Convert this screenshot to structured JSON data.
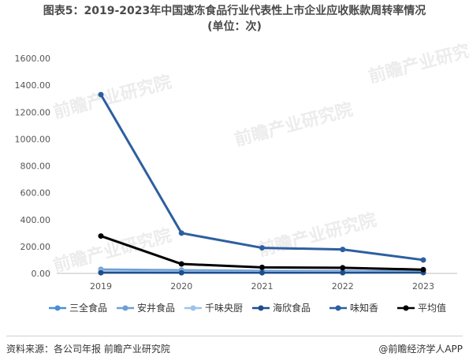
{
  "title_line1": "图表5：2019-2023年中国速冻食品行业代表性上市企业应收账款周转率情况",
  "title_line2": "(单位：次)",
  "source": "资料来源：各公司年报 前瞻产业研究院",
  "brand": "@前瞻经济学人APP",
  "watermark": "前瞻产业研究院",
  "chart_data": {
    "type": "line",
    "title": "图表5：2019-2023年中国速冻食品行业代表性上市企业应收账款周转率情况 (单位：次)",
    "xlabel": "",
    "ylabel": "",
    "categories": [
      "2019",
      "2020",
      "2021",
      "2022",
      "2023"
    ],
    "ylim": [
      0,
      1600
    ],
    "yticks": [
      "0.00",
      "200.00",
      "400.00",
      "600.00",
      "800.00",
      "1000.00",
      "1200.00",
      "1400.00",
      "1600.00"
    ],
    "grid": false,
    "legend_position": "bottom",
    "series": [
      {
        "name": "三全食品",
        "color": "#4a8fd4",
        "values": [
          8,
          6,
          6,
          7,
          7
        ]
      },
      {
        "name": "安井食品",
        "color": "#6f9fd6",
        "values": [
          30,
          25,
          20,
          18,
          17
        ]
      },
      {
        "name": "千味央厨",
        "color": "#9cc3e8",
        "values": [
          15,
          12,
          10,
          10,
          9
        ]
      },
      {
        "name": "海欣食品",
        "color": "#1f4e8c",
        "values": [
          5,
          5,
          5,
          5,
          6
        ]
      },
      {
        "name": "味知香",
        "color": "#2d5fa0",
        "values": [
          1330,
          300,
          190,
          178,
          100
        ]
      },
      {
        "name": "平均值",
        "color": "#000000",
        "values": [
          278,
          70,
          45,
          42,
          28
        ]
      }
    ]
  }
}
